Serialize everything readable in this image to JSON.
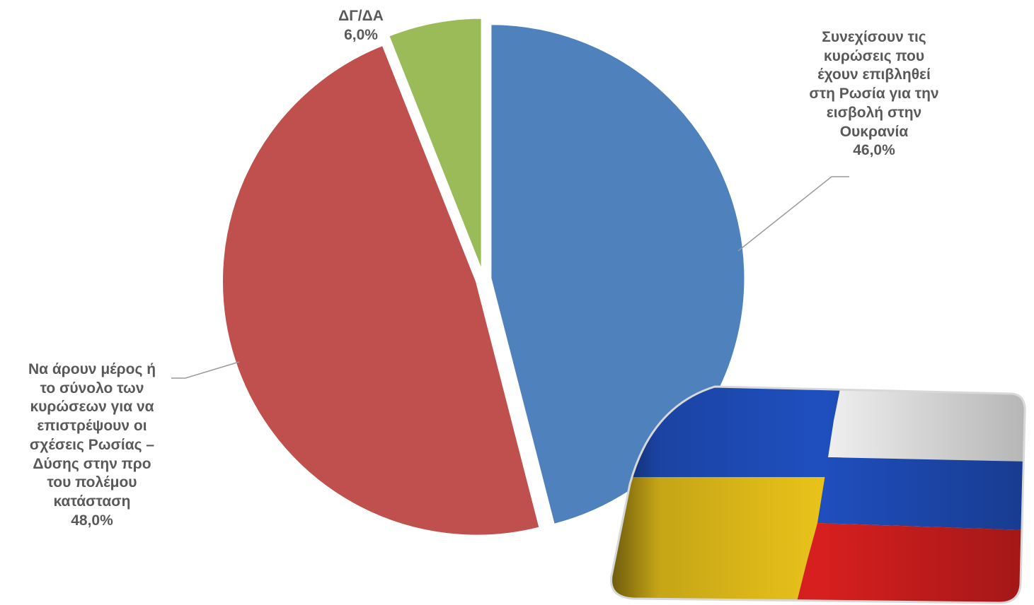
{
  "chart_data": {
    "type": "pie",
    "title": "",
    "series": [
      {
        "values": [
          46.0,
          48.0,
          6.0
        ]
      }
    ],
    "slices": [
      {
        "label_lines": [
          "Συνεχίσουν τις",
          "κυρώσεις που",
          "έχουν επιβληθεί",
          "στη Ρωσία για την",
          "εισβολή στην",
          "Ουκρανία"
        ],
        "value": 46.0,
        "value_label": "46,0%",
        "color": "#4F81BD"
      },
      {
        "label_lines": [
          "Να άρουν μέρος ή",
          "το σύνολο των",
          "κυρώσεων για να",
          "επιστρέψουν οι",
          "σχέσεις Ρωσίας –",
          "Δύσης στην προ",
          "του πολέμου",
          "κατάσταση"
        ],
        "value": 48.0,
        "value_label": "48,0%",
        "color": "#C0504D"
      },
      {
        "label_lines": [
          "ΔΓ/ΔΑ"
        ],
        "value": 6.0,
        "value_label": "6,0%",
        "color": "#9BBB59"
      }
    ],
    "start_angle": "top (12 o'clock)",
    "direction": "clockwise",
    "label_color": "#595959"
  },
  "decor": {
    "image": "ukraine-russia-flags-photo",
    "colors": {
      "blue": "#1F4FBF",
      "yellow": "#E8C21A",
      "white": "#F2F2F2",
      "red": "#D81F1F"
    }
  }
}
